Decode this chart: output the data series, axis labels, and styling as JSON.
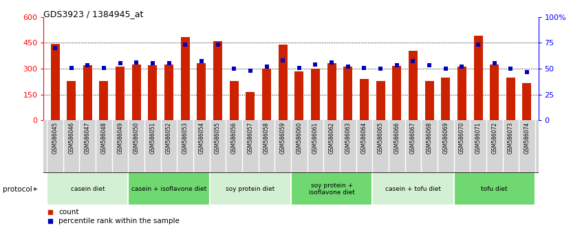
{
  "title": "GDS3923 / 1384945_at",
  "samples": [
    "GSM586045",
    "GSM586046",
    "GSM586047",
    "GSM586048",
    "GSM586049",
    "GSM586050",
    "GSM586051",
    "GSM586052",
    "GSM586053",
    "GSM586054",
    "GSM586055",
    "GSM586056",
    "GSM586057",
    "GSM586058",
    "GSM586059",
    "GSM586060",
    "GSM586061",
    "GSM586062",
    "GSM586063",
    "GSM586064",
    "GSM586065",
    "GSM586066",
    "GSM586067",
    "GSM586068",
    "GSM586069",
    "GSM586070",
    "GSM586071",
    "GSM586072",
    "GSM586073",
    "GSM586074"
  ],
  "counts": [
    445,
    230,
    320,
    230,
    310,
    325,
    320,
    325,
    485,
    330,
    460,
    230,
    165,
    300,
    440,
    285,
    300,
    330,
    310,
    240,
    230,
    315,
    405,
    230,
    250,
    310,
    490,
    325,
    250,
    215
  ],
  "percentile": [
    70,
    51,
    53,
    51,
    55,
    56,
    55,
    55,
    73,
    57,
    73,
    50,
    48,
    52,
    58,
    51,
    54,
    56,
    52,
    51,
    50,
    53,
    57,
    53,
    50,
    52,
    73,
    55,
    50,
    47
  ],
  "groups": [
    {
      "label": "casein diet",
      "start": 0,
      "end": 5,
      "color": "#d4f0d4"
    },
    {
      "label": "casein + isoflavone diet",
      "start": 5,
      "end": 10,
      "color": "#70d870"
    },
    {
      "label": "soy protein diet",
      "start": 10,
      "end": 15,
      "color": "#d4f0d4"
    },
    {
      "label": "soy protein +\nisoflavone diet",
      "start": 15,
      "end": 20,
      "color": "#70d870"
    },
    {
      "label": "casein + tofu diet",
      "start": 20,
      "end": 25,
      "color": "#d4f0d4"
    },
    {
      "label": "tofu diet",
      "start": 25,
      "end": 30,
      "color": "#70d870"
    }
  ],
  "bar_color": "#cc2200",
  "dot_color": "#0000bb",
  "left_ylim": [
    0,
    600
  ],
  "left_yticks": [
    0,
    150,
    300,
    450,
    600
  ],
  "right_ylim": [
    0,
    100
  ],
  "right_yticks": [
    0,
    25,
    50,
    75,
    100
  ],
  "right_yticklabels": [
    "0",
    "25",
    "50",
    "75",
    "100%"
  ],
  "grid_values": [
    150,
    300,
    450
  ],
  "background_color": "#ffffff",
  "bar_width": 0.55,
  "tick_area_color": "#d4d4d4"
}
